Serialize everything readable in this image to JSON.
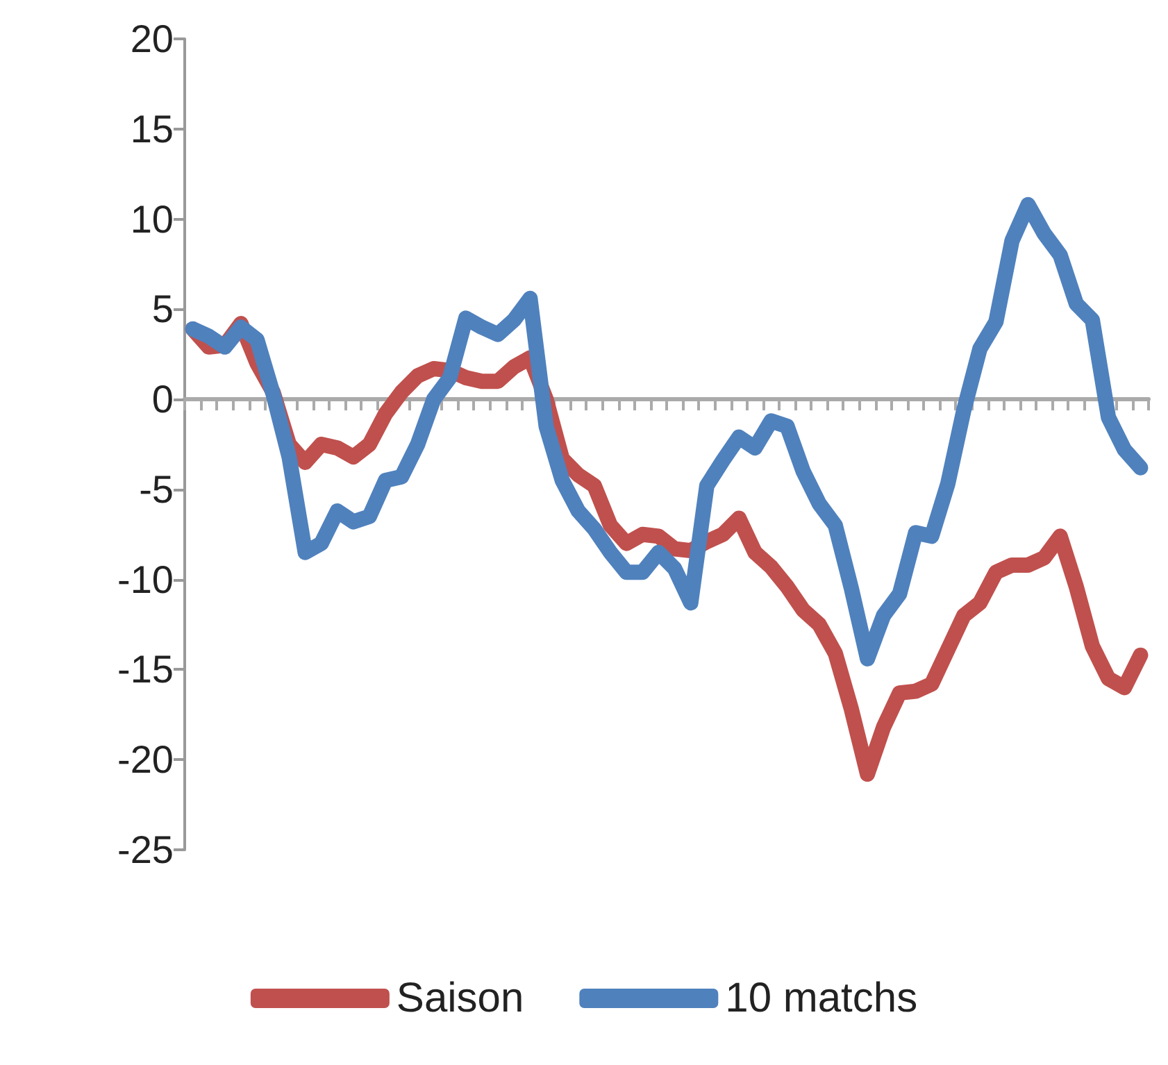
{
  "chart_data": {
    "type": "line",
    "categories": [
      null,
      null,
      null,
      null,
      null,
      null,
      null,
      null,
      null,
      null,
      null,
      null,
      null,
      null,
      null,
      null,
      null,
      null,
      null,
      null,
      null,
      null,
      null,
      null,
      null,
      null,
      null,
      null,
      null,
      null,
      null,
      null,
      null,
      null,
      null,
      null,
      null,
      null,
      null,
      null,
      null,
      null,
      null,
      null,
      null,
      null,
      null,
      null,
      null,
      null,
      null,
      null,
      null,
      null,
      null,
      null,
      null,
      null,
      null,
      null
    ],
    "series": [
      {
        "name": "Saison",
        "color": "#c0504d",
        "values": [
          3.9,
          2.9,
          3,
          4.2,
          2,
          0.4,
          -2.5,
          -3.5,
          -2.5,
          -2.7,
          -3.2,
          -2.5,
          -0.8,
          0.4,
          1.3,
          1.7,
          1.6,
          1.2,
          1,
          1,
          1.8,
          2.3,
          0,
          -3.3,
          -4.2,
          -4.8,
          -7,
          -8,
          -7.5,
          -7.6,
          -8.3,
          -8.4,
          -7.9,
          -7.5,
          -6.6,
          -8.5,
          -9.3,
          -10.4,
          -11.7,
          -12.5,
          -14.1,
          -17.2,
          -20.8,
          -18.2,
          -16.3,
          -16.2,
          -15.8,
          -13.9,
          -12,
          -11.3,
          -9.6,
          -9.2,
          -9.2,
          -8.8,
          -7.6,
          -10.4,
          -13.7,
          -15.5,
          -16,
          -14.2
        ]
      },
      {
        "name": "10 matchs",
        "color": "#4f81bd",
        "values": [
          3.9,
          3.5,
          2.9,
          4,
          3.3,
          0.3,
          -3.2,
          -8.5,
          -8,
          -6.2,
          -6.8,
          -6.5,
          -4.5,
          -4.3,
          -2.5,
          0,
          1.2,
          4.5,
          4,
          3.6,
          4.4,
          5.6,
          -1.5,
          -4.5,
          -6.2,
          -7.2,
          -8.5,
          -9.6,
          -9.6,
          -8.5,
          -9.4,
          -11.3,
          -4.8,
          -3.4,
          -2.1,
          -2.7,
          -1.2,
          -1.5,
          -4,
          -5.8,
          -7,
          -10.5,
          -14.4,
          -12,
          -10.8,
          -7.4,
          -7.6,
          -4.7,
          -0.6,
          2.8,
          4.3,
          8.8,
          10.8,
          9.2,
          8,
          5.3,
          4.4,
          -1,
          -2.8,
          -3.8
        ]
      }
    ],
    "ylim": [
      -25,
      20
    ],
    "yticks": [
      -25,
      -20,
      -15,
      -10,
      -5,
      0,
      5,
      10,
      15,
      20
    ],
    "legend": "bottom",
    "marker": "none",
    "line_style": "solid"
  }
}
